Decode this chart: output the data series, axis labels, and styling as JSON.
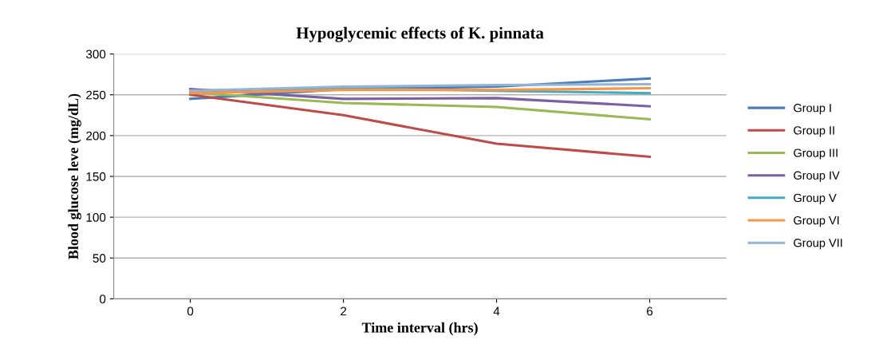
{
  "chart_data": {
    "type": "line",
    "title": "Hypoglycemic effects of K. pinnata",
    "xlabel": "Time interval (hrs)",
    "ylabel": "Blood glucose leve (mg/dL)",
    "categories": [
      "0",
      "2",
      "4",
      "6"
    ],
    "ylim": [
      0,
      300
    ],
    "yticks": [
      0,
      50,
      100,
      150,
      200,
      250,
      300
    ],
    "grid": "y",
    "legend": "right",
    "series": [
      {
        "name": "Group I",
        "color": "#4a7ebb",
        "values": [
          245,
          257,
          260,
          270
        ]
      },
      {
        "name": "Group II",
        "color": "#be4b48",
        "values": [
          250,
          225,
          190,
          174
        ]
      },
      {
        "name": "Group III",
        "color": "#98b954",
        "values": [
          253,
          240,
          235,
          220
        ]
      },
      {
        "name": "Group IV",
        "color": "#7d60a0",
        "values": [
          257,
          245,
          246,
          236
        ]
      },
      {
        "name": "Group V",
        "color": "#46aac5",
        "values": [
          255,
          258,
          255,
          252
        ]
      },
      {
        "name": "Group VI",
        "color": "#f79646",
        "values": [
          252,
          256,
          256,
          258
        ]
      },
      {
        "name": "Group VII",
        "color": "#95b3d7",
        "values": [
          255,
          260,
          262,
          263
        ]
      }
    ]
  }
}
